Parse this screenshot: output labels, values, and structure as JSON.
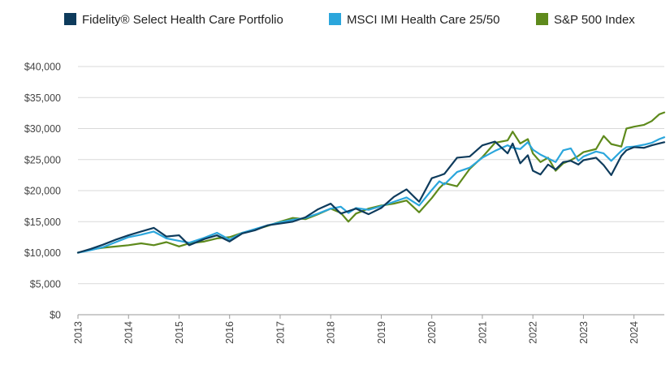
{
  "chart_data": {
    "type": "line",
    "title": "",
    "xlabel": "",
    "ylabel": "",
    "legend_position": "top",
    "grid": "horizontal",
    "ylim": [
      0,
      40000
    ],
    "y_ticks": [
      0,
      5000,
      10000,
      15000,
      20000,
      25000,
      30000,
      35000,
      40000
    ],
    "y_tick_labels": [
      "$0",
      "$5,000",
      "$10,000",
      "$15,000",
      "$20,000",
      "$25,000",
      "$30,000",
      "$35,000",
      "$40,000"
    ],
    "x_range": [
      2013,
      2024.6
    ],
    "x_ticks": [
      2013,
      2014,
      2015,
      2016,
      2017,
      2018,
      2019,
      2020,
      2021,
      2022,
      2023,
      2024
    ],
    "x_tick_labels": [
      "2013",
      "2014",
      "2015",
      "2016",
      "2017",
      "2018",
      "2019",
      "2020",
      "2021",
      "2022",
      "2023",
      "2024"
    ],
    "series": [
      {
        "name": "S&P 500 Index",
        "color": "#5e8a1c",
        "x": [
          2013.0,
          2013.25,
          2013.5,
          2013.75,
          2014.0,
          2014.25,
          2014.5,
          2014.75,
          2015.0,
          2015.2,
          2015.5,
          2015.75,
          2016.0,
          2016.25,
          2016.5,
          2016.75,
          2017.0,
          2017.25,
          2017.5,
          2017.75,
          2018.0,
          2018.2,
          2018.35,
          2018.5,
          2018.75,
          2019.0,
          2019.25,
          2019.5,
          2019.75,
          2020.0,
          2020.15,
          2020.25,
          2020.5,
          2020.75,
          2021.0,
          2021.25,
          2021.5,
          2021.6,
          2021.75,
          2021.9,
          2022.0,
          2022.15,
          2022.3,
          2022.45,
          2022.6,
          2022.75,
          2022.9,
          2023.0,
          2023.25,
          2023.4,
          2023.55,
          2023.75,
          2023.85,
          2024.0,
          2024.2,
          2024.35,
          2024.5,
          2024.6
        ],
        "values": [
          10000,
          10500,
          10800,
          11000,
          11200,
          11500,
          11200,
          11700,
          11000,
          11500,
          11800,
          12300,
          12500,
          13200,
          13700,
          14300,
          15000,
          15600,
          15400,
          16200,
          17100,
          16400,
          15000,
          16300,
          17100,
          17600,
          17900,
          18400,
          16500,
          18800,
          20400,
          21200,
          20700,
          23500,
          25400,
          27700,
          28100,
          29500,
          27600,
          28300,
          26000,
          24600,
          25300,
          23200,
          24400,
          24900,
          25600,
          26200,
          26700,
          28800,
          27500,
          27100,
          30000,
          30300,
          30600,
          31200,
          32300,
          32600
        ]
      },
      {
        "name": "MSCI IMI Health Care 25/50",
        "color": "#2ba6dc",
        "x": [
          2013.0,
          2013.25,
          2013.5,
          2013.75,
          2014.0,
          2014.25,
          2014.5,
          2014.75,
          2015.0,
          2015.2,
          2015.5,
          2015.75,
          2016.0,
          2016.25,
          2016.5,
          2016.75,
          2017.0,
          2017.25,
          2017.5,
          2017.75,
          2018.0,
          2018.2,
          2018.35,
          2018.5,
          2018.75,
          2019.0,
          2019.25,
          2019.5,
          2019.75,
          2020.0,
          2020.15,
          2020.25,
          2020.5,
          2020.75,
          2021.0,
          2021.25,
          2021.5,
          2021.6,
          2021.75,
          2021.9,
          2022.0,
          2022.15,
          2022.3,
          2022.45,
          2022.6,
          2022.75,
          2022.9,
          2023.0,
          2023.25,
          2023.4,
          2023.55,
          2023.75,
          2023.85,
          2024.0,
          2024.2,
          2024.35,
          2024.5,
          2024.6
        ],
        "values": [
          10000,
          10400,
          10900,
          11700,
          12500,
          12900,
          13400,
          12300,
          11900,
          11600,
          12400,
          13200,
          12100,
          13200,
          13800,
          14400,
          14900,
          15300,
          15600,
          16300,
          17100,
          17400,
          16400,
          17200,
          16900,
          17500,
          18200,
          18900,
          17600,
          20100,
          21500,
          21000,
          23000,
          23700,
          25300,
          26400,
          27300,
          26900,
          26700,
          27800,
          26600,
          25800,
          25200,
          24600,
          26500,
          26800,
          24800,
          25500,
          26300,
          26000,
          24800,
          26400,
          27000,
          27100,
          27400,
          27700,
          28300,
          28600
        ]
      },
      {
        "name": "Fidelity® Select Health Care Portfolio",
        "color": "#0e3b5c",
        "x": [
          2013.0,
          2013.25,
          2013.5,
          2013.75,
          2014.0,
          2014.25,
          2014.5,
          2014.75,
          2015.0,
          2015.2,
          2015.5,
          2015.75,
          2016.0,
          2016.25,
          2016.5,
          2016.75,
          2017.0,
          2017.25,
          2017.5,
          2017.75,
          2018.0,
          2018.2,
          2018.35,
          2018.5,
          2018.75,
          2019.0,
          2019.25,
          2019.5,
          2019.75,
          2020.0,
          2020.15,
          2020.25,
          2020.5,
          2020.75,
          2021.0,
          2021.25,
          2021.5,
          2021.6,
          2021.75,
          2021.9,
          2022.0,
          2022.15,
          2022.3,
          2022.45,
          2022.6,
          2022.75,
          2022.9,
          2023.0,
          2023.25,
          2023.4,
          2023.55,
          2023.75,
          2023.85,
          2024.0,
          2024.2,
          2024.35,
          2024.5,
          2024.6
        ],
        "values": [
          10000,
          10600,
          11300,
          12100,
          12800,
          13400,
          14000,
          12600,
          12800,
          11200,
          12200,
          12800,
          11800,
          13100,
          13600,
          14400,
          14700,
          15000,
          15700,
          17000,
          17900,
          16300,
          16700,
          17100,
          16200,
          17200,
          19000,
          20200,
          18200,
          22000,
          22400,
          22700,
          25300,
          25500,
          27300,
          27900,
          26000,
          27600,
          24400,
          25700,
          23200,
          22600,
          24200,
          23400,
          24600,
          24800,
          24200,
          24900,
          25300,
          24100,
          22500,
          25600,
          26500,
          27000,
          26900,
          27300,
          27600,
          27800
        ]
      }
    ]
  },
  "legend": {
    "items": [
      {
        "label": "Fidelity® Select Health Care Portfolio",
        "color": "#0e3b5c"
      },
      {
        "label": "MSCI IMI Health Care 25/50",
        "color": "#2ba6dc"
      },
      {
        "label": "S&P 500 Index",
        "color": "#5e8a1c"
      }
    ]
  }
}
